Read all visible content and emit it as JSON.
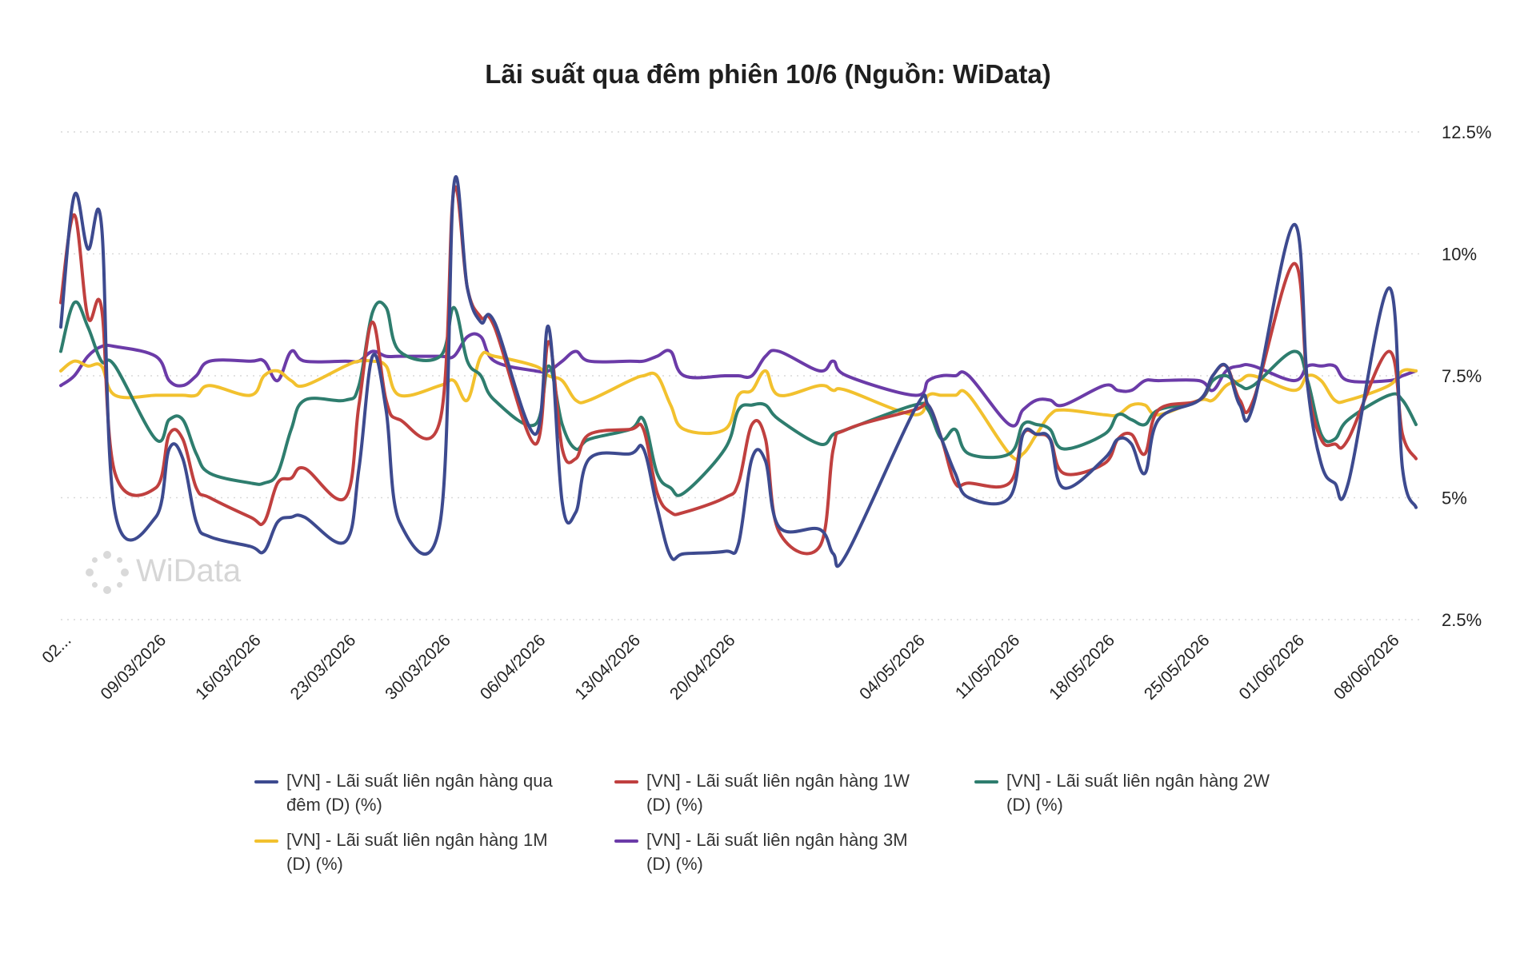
{
  "chart_data": {
    "type": "line",
    "title": "Lãi suất qua đêm phiên 10/6 (Nguồn: WiData)",
    "watermark": "WiData",
    "y_axis": {
      "position": "right",
      "ylim": [
        2.5,
        12.5
      ],
      "ticks": [
        2.5,
        5,
        7.5,
        10,
        12.5
      ],
      "tick_labels": [
        "2.5%",
        "5%",
        "7.5%",
        "10%",
        "12.5%"
      ]
    },
    "x_axis": {
      "type": "date",
      "tick_labels": [
        "02...",
        "09/03/2026",
        "16/03/2026",
        "23/03/2026",
        "30/03/2026",
        "06/04/2026",
        "13/04/2026",
        "20/04/2026",
        "04/05/2026",
        "11/05/2026",
        "18/05/2026",
        "25/05/2026",
        "01/06/2026",
        "08/06/2026"
      ]
    },
    "grid": true,
    "legend_position": "bottom",
    "x": [
      "02/03/2026",
      "03/03/2026",
      "04/03/2026",
      "05/03/2026",
      "06/03/2026",
      "09/03/2026",
      "10/03/2026",
      "11/03/2026",
      "12/03/2026",
      "13/03/2026",
      "16/03/2026",
      "17/03/2026",
      "18/03/2026",
      "19/03/2026",
      "20/03/2026",
      "23/03/2026",
      "24/03/2026",
      "25/03/2026",
      "26/03/2026",
      "27/03/2026",
      "30/03/2026",
      "31/03/2026",
      "01/04/2026",
      "02/04/2026",
      "03/04/2026",
      "06/04/2026",
      "07/04/2026",
      "08/04/2026",
      "09/04/2026",
      "10/04/2026",
      "13/04/2026",
      "14/04/2026",
      "15/04/2026",
      "16/04/2026",
      "17/04/2026",
      "20/04/2026",
      "21/04/2026",
      "22/04/2026",
      "23/04/2026",
      "24/04/2026",
      "27/04/2026",
      "28/04/2026",
      "29/04/2026",
      "04/05/2026",
      "05/05/2026",
      "06/05/2026",
      "07/05/2026",
      "08/05/2026",
      "11/05/2026",
      "12/05/2026",
      "13/05/2026",
      "14/05/2026",
      "15/05/2026",
      "18/05/2026",
      "19/05/2026",
      "20/05/2026",
      "21/05/2026",
      "22/05/2026",
      "25/05/2026",
      "26/05/2026",
      "27/05/2026",
      "28/05/2026",
      "29/05/2026",
      "01/06/2026",
      "02/06/2026",
      "03/06/2026",
      "04/06/2026",
      "05/06/2026",
      "08/06/2026",
      "09/06/2026",
      "10/06/2026"
    ],
    "series": [
      {
        "name": "[VN] - Lãi suất liên ngân hàng qua đêm (D) (%)",
        "color": "#3d4a8f",
        "values": [
          8.5,
          11.2,
          10.1,
          10.6,
          4.7,
          4.6,
          6.0,
          5.8,
          4.5,
          4.2,
          4.0,
          3.9,
          4.5,
          4.6,
          4.6,
          4.1,
          5.6,
          7.9,
          6.8,
          4.5,
          4.5,
          11.4,
          9.3,
          8.6,
          8.6,
          6.3,
          8.5,
          4.9,
          4.7,
          5.8,
          5.9,
          6.0,
          4.8,
          3.8,
          3.85,
          3.9,
          4.05,
          5.8,
          5.75,
          4.4,
          4.35,
          3.85,
          3.85,
          6.8,
          6.9,
          6.2,
          5.5,
          5.0,
          5.0,
          6.3,
          6.3,
          6.2,
          5.2,
          5.8,
          6.2,
          6.1,
          5.5,
          6.6,
          7.0,
          7.5,
          7.7,
          6.9,
          6.9,
          10.6,
          7.3,
          5.7,
          5.3,
          5.3,
          9.3,
          5.6,
          4.8
        ]
      },
      {
        "name": "[VN] - Lãi suất liên ngân hàng 1W (D) (%)",
        "color": "#c0403f",
        "values": [
          9.0,
          10.8,
          8.7,
          8.9,
          5.5,
          5.2,
          6.3,
          6.2,
          5.2,
          5.0,
          4.6,
          4.5,
          5.3,
          5.4,
          5.6,
          5.0,
          6.9,
          8.6,
          7.0,
          6.6,
          6.6,
          11.3,
          9.3,
          8.7,
          8.5,
          6.1,
          8.2,
          6.0,
          5.8,
          6.3,
          6.4,
          6.4,
          5.1,
          4.7,
          4.7,
          5.0,
          5.3,
          6.5,
          6.2,
          4.3,
          4.0,
          6.0,
          6.4,
          6.8,
          6.9,
          6.2,
          5.3,
          5.3,
          5.3,
          6.3,
          6.3,
          6.2,
          5.5,
          5.7,
          6.2,
          6.3,
          5.9,
          6.8,
          7.0,
          7.5,
          7.7,
          7.0,
          7.0,
          9.8,
          7.3,
          6.2,
          6.1,
          6.2,
          8.0,
          6.3,
          5.8
        ]
      },
      {
        "name": "[VN] - Lãi suất liên ngân hàng 2W (D) (%)",
        "color": "#2e7d6e",
        "values": [
          8.0,
          9.0,
          8.5,
          7.8,
          7.7,
          6.2,
          6.6,
          6.6,
          5.9,
          5.5,
          5.3,
          5.3,
          5.5,
          6.4,
          7.0,
          7.0,
          7.3,
          8.8,
          8.9,
          8.0,
          7.9,
          8.9,
          7.8,
          7.5,
          7.0,
          6.5,
          7.7,
          6.5,
          6.0,
          6.2,
          6.4,
          6.6,
          5.5,
          5.2,
          5.1,
          6.0,
          6.8,
          6.9,
          6.9,
          6.6,
          6.1,
          6.3,
          6.4,
          6.9,
          6.8,
          6.2,
          6.4,
          5.9,
          5.9,
          6.5,
          6.5,
          6.4,
          6.0,
          6.3,
          6.7,
          6.6,
          6.5,
          6.8,
          7.0,
          7.4,
          7.5,
          7.3,
          7.3,
          8.0,
          7.4,
          6.3,
          6.2,
          6.6,
          7.1,
          7.0,
          6.5
        ]
      },
      {
        "name": "[VN] - Lãi suất liên ngân hàng 1M (D) (%)",
        "color": "#f2c12e",
        "values": [
          7.6,
          7.8,
          7.7,
          7.7,
          7.1,
          7.1,
          7.1,
          7.1,
          7.1,
          7.3,
          7.1,
          7.5,
          7.6,
          7.4,
          7.3,
          7.7,
          7.8,
          7.8,
          7.7,
          7.1,
          7.3,
          7.4,
          7.0,
          7.9,
          7.9,
          7.7,
          7.5,
          7.4,
          7.0,
          7.0,
          7.4,
          7.5,
          7.5,
          6.9,
          6.4,
          6.4,
          7.1,
          7.2,
          7.6,
          7.1,
          7.3,
          7.2,
          7.2,
          6.7,
          7.1,
          7.1,
          7.1,
          7.1,
          5.9,
          5.9,
          6.3,
          6.7,
          6.8,
          6.7,
          6.7,
          6.9,
          6.9,
          6.7,
          7.0,
          7.0,
          7.3,
          7.4,
          7.5,
          7.2,
          7.5,
          7.4,
          7.0,
          7.0,
          7.3,
          7.6,
          7.6
        ]
      },
      {
        "name": "[VN] - Lãi suất liên ngân hàng 3M (D) (%)",
        "color": "#6b3ba8",
        "values": [
          7.3,
          7.5,
          7.9,
          8.1,
          8.1,
          7.9,
          7.4,
          7.3,
          7.5,
          7.8,
          7.8,
          7.8,
          7.4,
          8.0,
          7.8,
          7.8,
          7.8,
          8.0,
          7.9,
          7.9,
          7.9,
          7.9,
          8.3,
          8.3,
          7.8,
          7.6,
          7.6,
          7.8,
          8.0,
          7.8,
          7.8,
          7.8,
          7.9,
          8.0,
          7.5,
          7.5,
          7.5,
          7.5,
          7.9,
          8.0,
          7.6,
          7.8,
          7.5,
          7.1,
          7.4,
          7.5,
          7.5,
          7.5,
          6.5,
          6.8,
          7.0,
          7.0,
          6.9,
          7.3,
          7.2,
          7.2,
          7.4,
          7.4,
          7.4,
          7.2,
          7.6,
          7.7,
          7.7,
          7.4,
          7.7,
          7.7,
          7.7,
          7.4,
          7.4,
          7.5,
          7.6
        ]
      }
    ]
  }
}
